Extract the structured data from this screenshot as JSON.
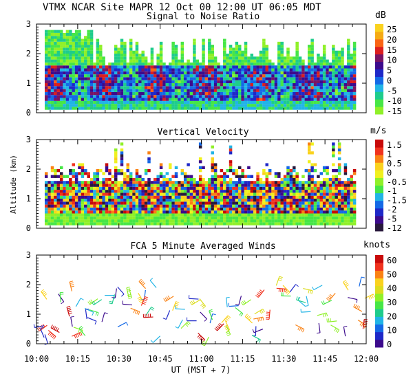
{
  "header": {
    "line": "VTMX  NCAR Site  MAPR 12 Oct 00  12:00 UT  06:05  MDT"
  },
  "y_axis_label": "Altitude (km)",
  "x_axis_label": "UT  (MST + 7)",
  "colors": {
    "snr_scale": [
      "#8ff028",
      "#46e646",
      "#1ecc8c",
      "#21b4e6",
      "#1469e6",
      "#1e28c8",
      "#3c0a8c",
      "#781464",
      "#dc1e1e",
      "#fa6414",
      "#f5aa14",
      "#fad21e"
    ],
    "vel_scale": [
      "#28193c",
      "#3c0a8c",
      "#1e28c8",
      "#1469e6",
      "#21b4e6",
      "#46e646",
      "#8ff028",
      "#f0f01e",
      "#fad21e",
      "#fa8214",
      "#f0321e",
      "#c80a0a"
    ],
    "wind_scale": [
      "#3c0a8c",
      "#1e28c8",
      "#1469e6",
      "#21b4e6",
      "#1ecc8c",
      "#46e646",
      "#8ff028",
      "#dcdc1e",
      "#fad21e",
      "#fa8214",
      "#f0321e",
      "#c80a0a"
    ]
  },
  "chart_data": [
    {
      "panel": "snr",
      "type": "heatmap",
      "title": "Signal to Noise Ratio",
      "units": "dB",
      "xlim": [
        0,
        120
      ],
      "ylim": [
        0,
        3
      ],
      "yticks": [
        "0",
        "1",
        "2",
        "3"
      ],
      "colorbar_labels": [
        "25",
        "20",
        "15",
        "10",
        "5",
        "0",
        "-5",
        "-10",
        "-15"
      ],
      "x_minutes_range": [
        3,
        116
      ],
      "altitude_range_km": [
        0.1,
        2.8
      ],
      "value_range_db": [
        -15,
        25
      ]
    },
    {
      "panel": "velocity",
      "type": "heatmap",
      "title": "Vertical Velocity",
      "units": "m/s",
      "xlim": [
        0,
        120
      ],
      "ylim": [
        0,
        3
      ],
      "yticks": [
        "0",
        "1",
        "2",
        "3"
      ],
      "colorbar_labels": [
        "1.5",
        "1",
        "0.5",
        "0",
        "-0.5",
        "-1",
        "-1.5",
        "-2",
        "-5",
        "-12"
      ],
      "x_minutes_range": [
        3,
        116
      ],
      "altitude_range_km": [
        0.1,
        3.0
      ],
      "value_range_ms": [
        -12,
        1.5
      ]
    },
    {
      "panel": "winds",
      "type": "scatter",
      "title": "FCA 5 Minute Averaged Winds",
      "units": "knots",
      "xlim": [
        0,
        120
      ],
      "ylim": [
        0,
        3
      ],
      "yticks": [
        "0",
        "1",
        "2",
        "3"
      ],
      "colorbar_labels": [
        "60",
        "50",
        "40",
        "30",
        "20",
        "10",
        "0"
      ],
      "x_tick_labels": [
        "10:00",
        "10:15",
        "10:30",
        "10:45",
        "11:00",
        "11:15",
        "11:30",
        "11:45",
        "12:00"
      ],
      "x_tick_minutes": [
        0,
        15,
        30,
        45,
        60,
        75,
        90,
        105,
        120
      ],
      "speed_range_knots": [
        0,
        60
      ]
    }
  ]
}
